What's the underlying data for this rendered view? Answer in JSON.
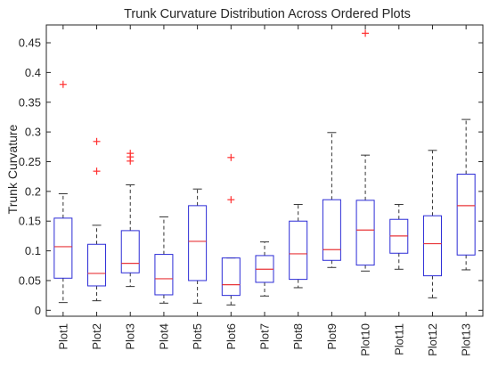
{
  "chart_data": {
    "type": "box",
    "title": "Trunk Curvature Distribution Across Ordered Plots",
    "xlabel": "",
    "ylabel": "Trunk Curvature",
    "ylim": [
      -0.01,
      0.48
    ],
    "yticks": [
      0,
      0.05,
      0.1,
      0.15,
      0.2,
      0.25,
      0.3,
      0.35,
      0.4,
      0.45
    ],
    "ytick_labels": [
      "0",
      "0.05",
      "0.1",
      "0.15",
      "0.2",
      "0.25",
      "0.3",
      "0.35",
      "0.4",
      "0.45"
    ],
    "grid": false,
    "colors": {
      "box": "#2b2bd6",
      "median": "#e8363a",
      "whisker": "#333333",
      "outlier": "#ff3030",
      "axis": "#262626"
    },
    "categories": [
      "Plot1",
      "Plot2",
      "Plot3",
      "Plot4",
      "Plot5",
      "Plot6",
      "Plot7",
      "Plot8",
      "Plot9",
      "Plot10",
      "Plot11",
      "Plot12",
      "Plot13"
    ],
    "boxes": [
      {
        "whisker_low": 0.013,
        "q1": 0.054,
        "median": 0.107,
        "q3": 0.155,
        "whisker_high": 0.196,
        "outliers": [
          0.38
        ]
      },
      {
        "whisker_low": 0.016,
        "q1": 0.041,
        "median": 0.062,
        "q3": 0.111,
        "whisker_high": 0.143,
        "outliers": [
          0.234,
          0.284
        ]
      },
      {
        "whisker_low": 0.04,
        "q1": 0.063,
        "median": 0.079,
        "q3": 0.134,
        "whisker_high": 0.211,
        "outliers": [
          0.251,
          0.258,
          0.264
        ]
      },
      {
        "whisker_low": 0.012,
        "q1": 0.026,
        "median": 0.053,
        "q3": 0.094,
        "whisker_high": 0.157,
        "outliers": []
      },
      {
        "whisker_low": 0.012,
        "q1": 0.05,
        "median": 0.116,
        "q3": 0.176,
        "whisker_high": 0.204,
        "outliers": []
      },
      {
        "whisker_low": 0.009,
        "q1": 0.025,
        "median": 0.043,
        "q3": 0.088,
        "whisker_high": 0.088,
        "outliers": [
          0.186,
          0.257
        ]
      },
      {
        "whisker_low": 0.024,
        "q1": 0.047,
        "median": 0.069,
        "q3": 0.092,
        "whisker_high": 0.115,
        "outliers": []
      },
      {
        "whisker_low": 0.038,
        "q1": 0.052,
        "median": 0.095,
        "q3": 0.15,
        "whisker_high": 0.178,
        "outliers": []
      },
      {
        "whisker_low": 0.072,
        "q1": 0.084,
        "median": 0.102,
        "q3": 0.186,
        "whisker_high": 0.299,
        "outliers": []
      },
      {
        "whisker_low": 0.066,
        "q1": 0.076,
        "median": 0.135,
        "q3": 0.185,
        "whisker_high": 0.261,
        "outliers": [
          0.466
        ]
      },
      {
        "whisker_low": 0.069,
        "q1": 0.096,
        "median": 0.125,
        "q3": 0.153,
        "whisker_high": 0.178,
        "outliers": []
      },
      {
        "whisker_low": 0.021,
        "q1": 0.058,
        "median": 0.112,
        "q3": 0.159,
        "whisker_high": 0.269,
        "outliers": []
      },
      {
        "whisker_low": 0.068,
        "q1": 0.093,
        "median": 0.176,
        "q3": 0.229,
        "whisker_high": 0.321,
        "outliers": []
      }
    ]
  }
}
